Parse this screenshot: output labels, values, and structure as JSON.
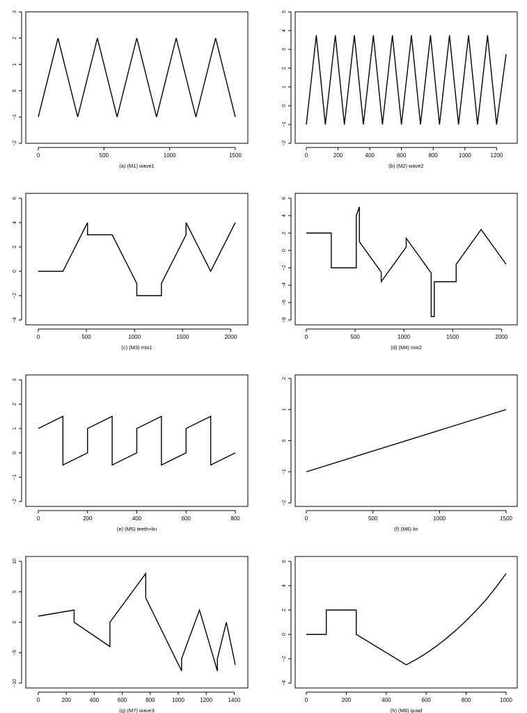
{
  "chart_data": [
    {
      "type": "line",
      "caption": "(a) (M1) wave1",
      "xlim": [
        0,
        1500
      ],
      "ylim": [
        -2,
        3
      ],
      "xticks": [
        0,
        500,
        1000,
        1500
      ],
      "yticks": [
        -2,
        -1,
        0,
        1,
        2,
        3
      ],
      "x": [
        0,
        150,
        300,
        450,
        600,
        750,
        900,
        1050,
        1200,
        1350,
        1500
      ],
      "y": [
        -1,
        2,
        -1,
        2,
        -1,
        2,
        -1,
        2,
        -1,
        2,
        -1
      ]
    },
    {
      "type": "line",
      "caption": "(b) (M2) wave2",
      "xlim": [
        0,
        1260
      ],
      "ylim": [
        -2,
        5
      ],
      "xticks": [
        0,
        200,
        400,
        600,
        800,
        1000,
        1200
      ],
      "yticks": [
        -2,
        -1,
        0,
        1,
        2,
        3,
        4,
        5
      ],
      "x": [
        0,
        63,
        120,
        183,
        240,
        303,
        360,
        423,
        480,
        543,
        600,
        663,
        720,
        783,
        840,
        903,
        960,
        1023,
        1080,
        1143,
        1200,
        1260
      ],
      "y": [
        -1,
        3.75,
        -1,
        3.75,
        -1,
        3.75,
        -1,
        3.75,
        -1,
        3.75,
        -1,
        3.75,
        -1,
        3.75,
        -1,
        3.75,
        -1,
        3.75,
        -1,
        3.75,
        -1,
        2.75
      ]
    },
    {
      "type": "line",
      "caption": "(c) (M3) mix1",
      "xlim": [
        0,
        2048
      ],
      "ylim": [
        -4,
        6
      ],
      "xticks": [
        0,
        500,
        1000,
        1500,
        2000
      ],
      "yticks": [
        -4,
        -2,
        0,
        2,
        4,
        6
      ],
      "x": [
        0,
        256,
        512,
        512,
        768,
        1024,
        1024,
        1280,
        1280,
        1536,
        1536,
        1792,
        2048
      ],
      "y": [
        0,
        0,
        4,
        3,
        3,
        -1,
        -2,
        -2,
        -1,
        3,
        4,
        0,
        4
      ]
    },
    {
      "type": "line",
      "caption": "(d) (M4) mix2",
      "xlim": [
        0,
        2048
      ],
      "ylim": [
        -8,
        6
      ],
      "xticks": [
        0,
        500,
        1000,
        1500,
        2000
      ],
      "yticks": [
        -8,
        -6,
        -4,
        -2,
        0,
        2,
        4,
        6
      ],
      "x": [
        0,
        256,
        256,
        512,
        512,
        544,
        544,
        768,
        768,
        1024,
        1024,
        1280,
        1280,
        1312,
        1312,
        1536,
        1536,
        1792,
        2048
      ],
      "y": [
        2,
        2,
        -2,
        -2,
        4,
        5,
        1,
        -2.5,
        -3.6,
        0.4,
        1.4,
        -2.6,
        -7.6,
        -7.6,
        -3.6,
        -3.6,
        -1.6,
        2.4,
        -1.6
      ]
    },
    {
      "type": "line",
      "caption": "(e) (M5) teeth+lin",
      "xlim": [
        0,
        800
      ],
      "ylim": [
        -2,
        3
      ],
      "xticks": [
        0,
        200,
        400,
        600,
        800
      ],
      "yticks": [
        -2,
        -1,
        0,
        1,
        2,
        3
      ],
      "x": [
        0,
        100,
        100,
        200,
        200,
        300,
        300,
        400,
        400,
        500,
        500,
        600,
        600,
        700,
        700,
        800
      ],
      "y": [
        1,
        1.5,
        -0.5,
        0,
        1,
        1.5,
        -0.5,
        0,
        1,
        1.5,
        -0.5,
        0,
        1,
        1.5,
        -0.5,
        0
      ]
    },
    {
      "type": "line",
      "caption": "(f) (M6) lin",
      "xlim": [
        0,
        1500
      ],
      "ylim": [
        -2,
        2
      ],
      "xticks": [
        0,
        500,
        1000,
        1500
      ],
      "yticks": [
        -2,
        -1,
        0,
        1,
        2
      ],
      "x": [
        0,
        1500
      ],
      "y": [
        -1,
        1
      ]
    },
    {
      "type": "line",
      "caption": "(g) (M7) wave3",
      "xlim": [
        0,
        1408
      ],
      "ylim": [
        -10,
        10
      ],
      "xticks": [
        0,
        200,
        400,
        600,
        800,
        1000,
        1200,
        1400
      ],
      "yticks": [
        -10,
        -5,
        0,
        5,
        10
      ],
      "x": [
        0,
        256,
        256,
        512,
        512,
        768,
        768,
        1024,
        1024,
        1152,
        1280,
        1280,
        1344,
        1408
      ],
      "y": [
        1,
        2,
        0,
        -4,
        0,
        8,
        4,
        -8,
        -6,
        2,
        -8,
        -6,
        0,
        -7
      ]
    },
    {
      "type": "line",
      "caption": "(h) (M8) quad",
      "xlim": [
        0,
        1000
      ],
      "ylim": [
        -4,
        6
      ],
      "xticks": [
        0,
        200,
        400,
        600,
        800,
        1000
      ],
      "yticks": [
        -4,
        -2,
        0,
        2,
        4,
        6
      ],
      "x": [
        0,
        100,
        100,
        250,
        250,
        500,
        550,
        600,
        650,
        700,
        750,
        800,
        850,
        900,
        950,
        1000
      ],
      "y": [
        0,
        0,
        2,
        2,
        0,
        -2.5,
        -2.06,
        -1.55,
        -0.98,
        -0.34,
        0.36,
        1.13,
        1.96,
        2.86,
        3.88,
        5
      ]
    }
  ]
}
